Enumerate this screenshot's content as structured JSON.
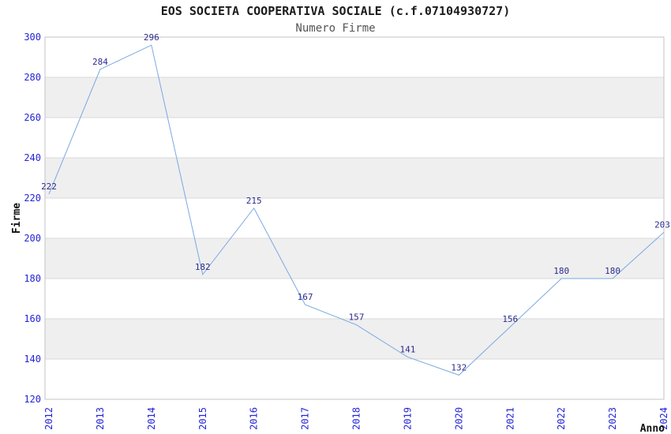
{
  "header": {
    "title": "EOS SOCIETA COOPERATIVA SOCIALE (c.f.07104930727)",
    "subtitle": "Numero Firme"
  },
  "chart_data": {
    "type": "line",
    "title": "EOS SOCIETA COOPERATIVA SOCIALE (c.f.07104930727)",
    "subtitle": "Numero Firme",
    "categories": [
      "2012",
      "2013",
      "2014",
      "2015",
      "2016",
      "2017",
      "2018",
      "2019",
      "2020",
      "2021",
      "2022",
      "2023",
      "2024"
    ],
    "series": [
      {
        "name": "Numero Firme",
        "values": [
          222,
          284,
          296,
          182,
          215,
          167,
          157,
          141,
          132,
          156,
          180,
          180,
          203
        ]
      }
    ],
    "xlabel": "Anno",
    "ylabel": "Firme",
    "ylim": [
      120,
      300
    ],
    "ytick_step": 20,
    "yticks": [
      120,
      140,
      160,
      180,
      200,
      220,
      240,
      260,
      280,
      300
    ],
    "grid": "horizontal",
    "legend": "none",
    "data_labels": true,
    "colors": {
      "line": "#7aa8e2",
      "tick_label": "#2424d6",
      "data_label": "#2b2b8f",
      "band": "#efefef",
      "gridline": "#d9d9d9",
      "border": "#c3c3c3",
      "title": "#1c1c1c",
      "subtitle": "#555555",
      "axis_title": "#111111",
      "background": "#ffffff"
    }
  }
}
